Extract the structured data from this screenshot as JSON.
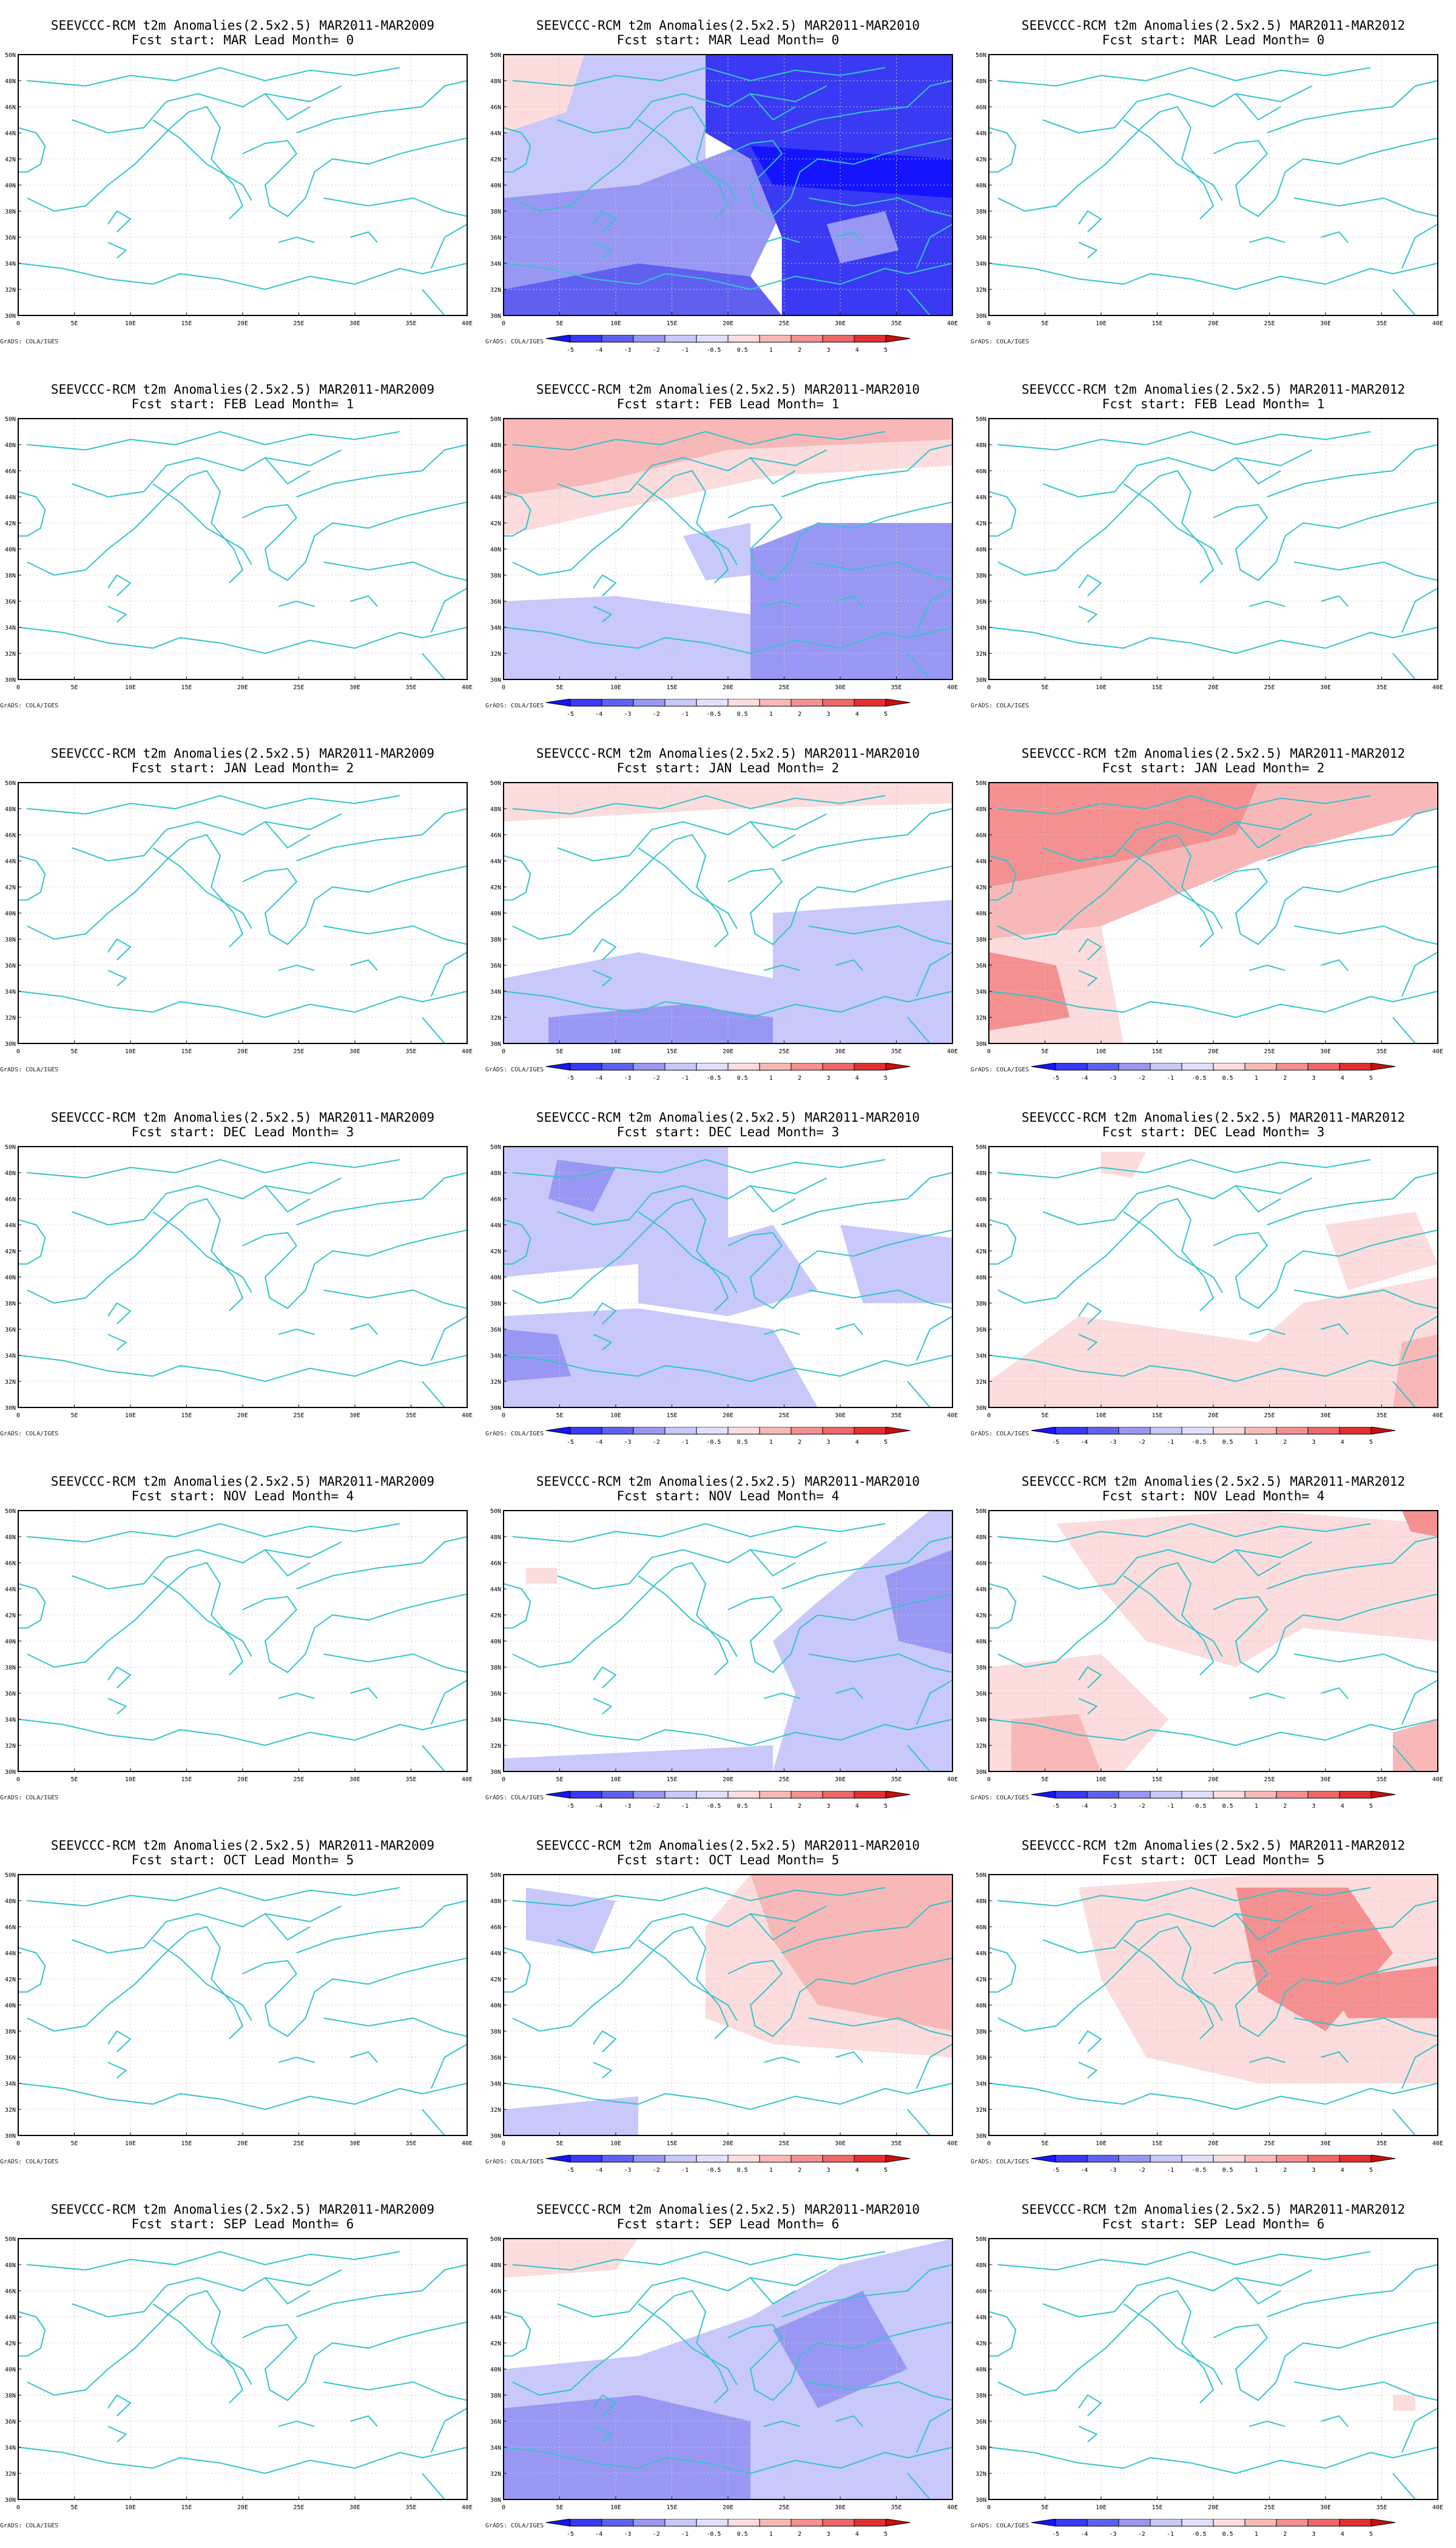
{
  "credit": "GrADS: COLA/IGES",
  "lat_labels": [
    "30N",
    "32N",
    "34N",
    "36N",
    "38N",
    "40N",
    "42N",
    "44N",
    "46N",
    "48N",
    "50N"
  ],
  "lon_labels": [
    "0",
    "5E",
    "10E",
    "15E",
    "20E",
    "25E",
    "30E",
    "35E",
    "40E"
  ],
  "colorbar_levels": [
    "-5",
    "-4",
    "-3",
    "-2",
    "-1",
    "-0.5",
    "0.5",
    "1",
    "2",
    "3",
    "4",
    "5"
  ],
  "colors": {
    "coast": "#33c4cc",
    "blue_levels": [
      "#1414ff",
      "#3a3af4",
      "#6060f0",
      "#9898f4",
      "#c8c8fa",
      "#e0e0fc"
    ],
    "red_levels": [
      "#fcdcdc",
      "#f8b8b8",
      "#f49090",
      "#ee6868",
      "#e03030",
      "#c81010"
    ]
  },
  "columns": [
    {
      "title": "SEEVCCC-RCM t2m Anomalies(2.5x2.5) MAR2011-MAR2009",
      "colorbar": [
        false,
        false,
        false,
        false,
        false,
        false,
        false
      ]
    },
    {
      "title": "SEEVCCC-RCM t2m Anomalies(2.5x2.5) MAR2011-MAR2010",
      "colorbar": [
        true,
        true,
        true,
        true,
        true,
        true,
        true
      ]
    },
    {
      "title": "SEEVCCC-RCM t2m Anomalies(2.5x2.5) MAR2011-MAR2012",
      "colorbar": [
        false,
        false,
        true,
        true,
        true,
        true,
        true
      ]
    }
  ],
  "rows": [
    {
      "subtitle": "Fcst start: MAR  Lead Month= 0"
    },
    {
      "subtitle": "Fcst start: FEB  Lead Month= 1"
    },
    {
      "subtitle": "Fcst start: JAN  Lead Month= 2"
    },
    {
      "subtitle": "Fcst start: DEC  Lead Month= 3"
    },
    {
      "subtitle": "Fcst start: NOV  Lead Month= 4"
    },
    {
      "subtitle": "Fcst start: OCT  Lead Month= 5"
    },
    {
      "subtitle": "Fcst start: SEP  Lead Month= 6"
    }
  ]
}
